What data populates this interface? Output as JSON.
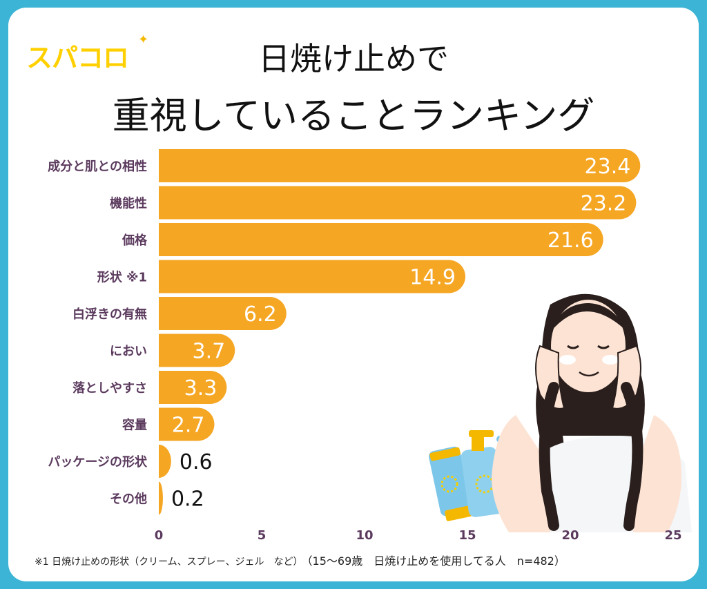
{
  "brand": {
    "logo_text": "スパコロ"
  },
  "title": {
    "line1": "日焼け止めで",
    "line2": "重視していることランキング"
  },
  "colors": {
    "frame": "#3bb4d6",
    "bar": "#f5a623",
    "label": "#5b3a5e",
    "bar_text": "#ffffff",
    "outside_text": "#111111",
    "logo": "#ffd000"
  },
  "chart_data": {
    "type": "bar",
    "orientation": "horizontal",
    "categories": [
      "成分と肌との相性",
      "機能性",
      "価格",
      "形状 ※1",
      "白浮きの有無",
      "におい",
      "落としやすさ",
      "容量",
      "パッケージの形状",
      "その他"
    ],
    "values": [
      23.4,
      23.2,
      21.6,
      14.9,
      6.2,
      3.7,
      3.3,
      2.7,
      0.6,
      0.2
    ],
    "value_labels": [
      "23.4",
      "23.2",
      "21.6",
      "14.9",
      "6.2",
      "3.7",
      "3.3",
      "2.7",
      "0.6",
      "0.2"
    ],
    "xlim": [
      0,
      25
    ],
    "xticks": [
      "0",
      "5",
      "10",
      "15",
      "20",
      "25"
    ],
    "xlabel": "",
    "ylabel": "",
    "grid": false,
    "legend": "none"
  },
  "footnote": {
    "note": "※1 日焼け止めの形状（クリーム、スプレー、ジェル　など）",
    "sample": "（15〜69歳　日焼け止めを使用してる人　n=482）"
  }
}
